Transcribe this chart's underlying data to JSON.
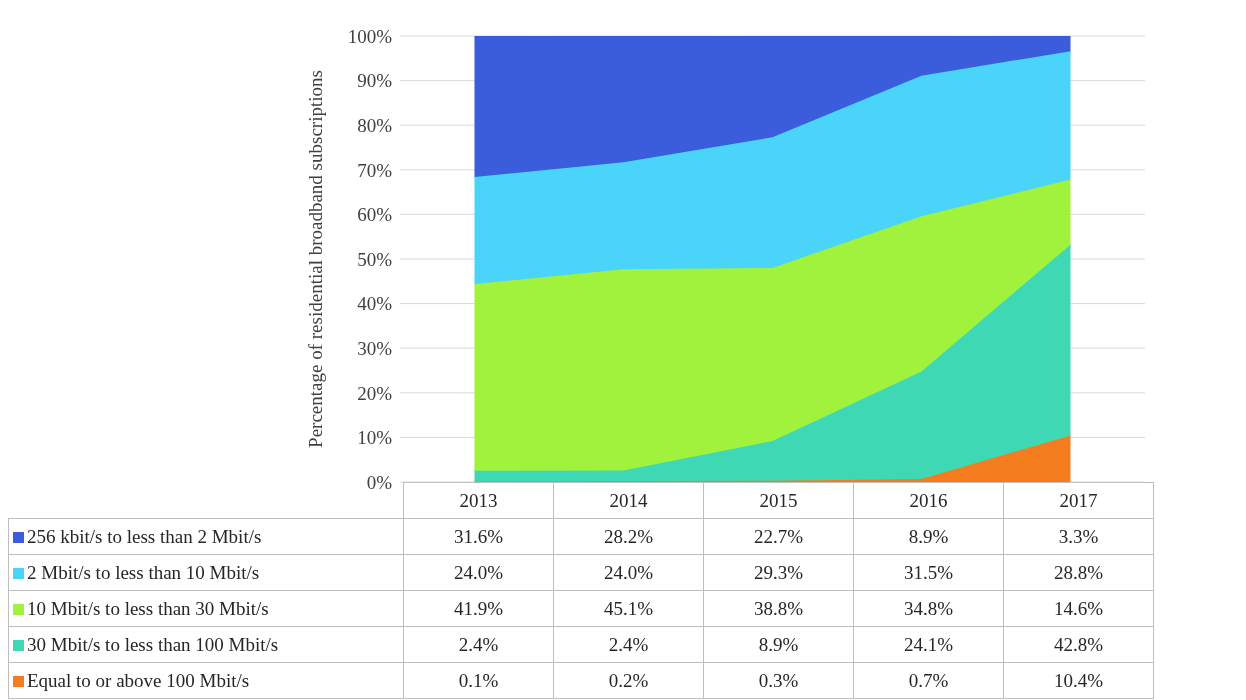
{
  "chart_data": {
    "type": "area",
    "stacked": true,
    "ylabel": "Percentage of residential broadband subscriptions",
    "categories": [
      "2013",
      "2014",
      "2015",
      "2016",
      "2017"
    ],
    "series": [
      {
        "name": "Equal to or above 100 Mbit/s",
        "color": "#f57c1f",
        "values": [
          0.1,
          0.2,
          0.3,
          0.7,
          10.4
        ],
        "value_labels": [
          "0.1%",
          "0.2%",
          "0.3%",
          "0.7%",
          "10.4%"
        ]
      },
      {
        "name": "30 Mbit/s to less than 100 Mbit/s",
        "color": "#3fd8b5",
        "values": [
          2.4,
          2.4,
          8.9,
          24.1,
          42.8
        ],
        "value_labels": [
          "2.4%",
          "2.4%",
          "8.9%",
          "24.1%",
          "42.8%"
        ]
      },
      {
        "name": "10 Mbit/s to less than 30 Mbit/s",
        "color": "#a0f23c",
        "values": [
          41.9,
          45.1,
          38.8,
          34.8,
          14.6
        ],
        "value_labels": [
          "41.9%",
          "45.1%",
          "38.8%",
          "34.8%",
          "14.6%"
        ]
      },
      {
        "name": "2 Mbit/s to less than 10 Mbit/s",
        "color": "#4ad4f9",
        "values": [
          24.0,
          24.0,
          29.3,
          31.5,
          28.8
        ],
        "value_labels": [
          "24.0%",
          "24.0%",
          "29.3%",
          "31.5%",
          "28.8%"
        ]
      },
      {
        "name": "256 kbit/s to less than 2 Mbit/s",
        "color": "#3b5ddb",
        "values": [
          31.6,
          28.2,
          22.7,
          8.9,
          3.3
        ],
        "value_labels": [
          "31.6%",
          "28.2%",
          "22.7%",
          "8.9%",
          "3.3%"
        ]
      }
    ],
    "ylim": [
      0,
      100
    ],
    "yticks": [
      {
        "value": 0,
        "label": "0%"
      },
      {
        "value": 10,
        "label": "10%"
      },
      {
        "value": 20,
        "label": "20%"
      },
      {
        "value": 30,
        "label": "30%"
      },
      {
        "value": 40,
        "label": "40%"
      },
      {
        "value": 50,
        "label": "50%"
      },
      {
        "value": 60,
        "label": "60%"
      },
      {
        "value": 70,
        "label": "70%"
      },
      {
        "value": 80,
        "label": "80%"
      },
      {
        "value": 90,
        "label": "90%"
      },
      {
        "value": 100,
        "label": "100%"
      }
    ],
    "grid": "y",
    "legend": "bottom"
  }
}
